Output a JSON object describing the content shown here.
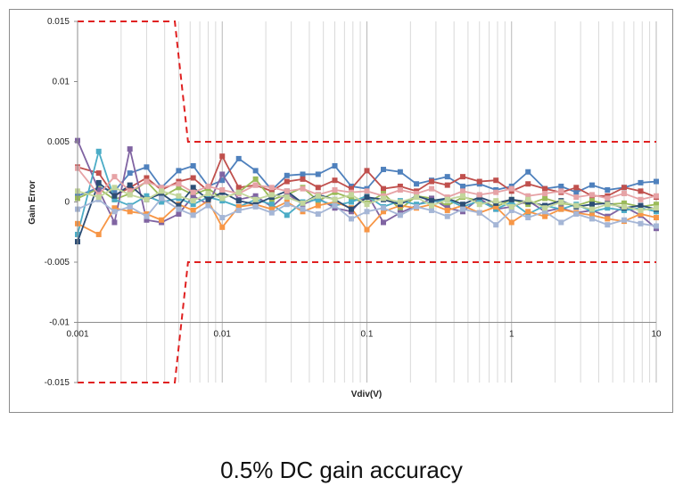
{
  "caption": "0.5% DC gain accuracy",
  "chart_data": {
    "type": "scatter",
    "title": "",
    "xlabel": "Vdiv(V)",
    "ylabel": "Gain Error",
    "xscale": "log",
    "xlim": [
      0.001,
      10
    ],
    "ylim": [
      -0.015,
      0.015
    ],
    "x_ticks": [
      0.001,
      0.01,
      0.1,
      1,
      10
    ],
    "x_tick_labels": [
      "0.001",
      "0.01",
      "0.1",
      "1",
      "10"
    ],
    "y_ticks": [
      0.015,
      0.01,
      0.005,
      0,
      -0.005,
      -0.01,
      -0.015
    ],
    "y_tick_labels": [
      "0.015",
      "0.01",
      "0.005",
      "0",
      "-0.005",
      "-0.01",
      "-0.015"
    ],
    "grid": "x-minor-log",
    "legend": "none",
    "limits": [
      {
        "name": "upper-limit",
        "color": "#e02020",
        "x": [
          0.001,
          0.0047,
          0.0058,
          10
        ],
        "y": [
          0.015,
          0.015,
          0.005,
          0.005
        ]
      },
      {
        "name": "lower-limit",
        "color": "#e02020",
        "x": [
          0.001,
          0.0047,
          0.0058,
          10
        ],
        "y": [
          -0.015,
          -0.015,
          -0.005,
          -0.005
        ]
      }
    ],
    "series": [
      {
        "name": "s1",
        "color": "#4f81bd",
        "x": [
          0.001,
          0.0014,
          0.0018,
          0.0023,
          0.003,
          0.0038,
          0.005,
          0.0063,
          0.008,
          0.01,
          0.013,
          0.017,
          0.022,
          0.028,
          0.036,
          0.046,
          0.06,
          0.078,
          0.1,
          0.13,
          0.17,
          0.22,
          0.28,
          0.36,
          0.46,
          0.6,
          0.78,
          1,
          1.3,
          1.7,
          2.2,
          2.8,
          3.6,
          4.6,
          6,
          7.8,
          10
        ],
        "y": [
          0.0005,
          0.0012,
          0.0009,
          0.0024,
          0.0029,
          0.0012,
          0.0026,
          0.003,
          0.0013,
          0.0018,
          0.0036,
          0.0026,
          0.001,
          0.0022,
          0.0023,
          0.0023,
          0.003,
          0.0013,
          0.0011,
          0.0027,
          0.0025,
          0.0015,
          0.0018,
          0.0021,
          0.0013,
          0.0015,
          0.001,
          0.0013,
          0.0025,
          0.0011,
          0.0013,
          0.0008,
          0.0014,
          0.001,
          0.0012,
          0.0016,
          0.0017
        ]
      },
      {
        "name": "s2",
        "color": "#c0504d",
        "x": [
          0.001,
          0.0014,
          0.0018,
          0.0023,
          0.003,
          0.0038,
          0.005,
          0.0063,
          0.008,
          0.01,
          0.013,
          0.017,
          0.022,
          0.028,
          0.036,
          0.046,
          0.06,
          0.078,
          0.1,
          0.13,
          0.17,
          0.22,
          0.28,
          0.36,
          0.46,
          0.6,
          0.78,
          1,
          1.3,
          1.7,
          2.2,
          2.8,
          3.6,
          4.6,
          6,
          7.8,
          10
        ],
        "y": [
          0.0029,
          0.0024,
          0.0005,
          0.0012,
          0.002,
          0.001,
          0.0017,
          0.002,
          0.0009,
          0.0038,
          0.0012,
          0.0014,
          0.0009,
          0.0017,
          0.0019,
          0.0012,
          0.0018,
          0.0011,
          0.0026,
          0.0011,
          0.0013,
          0.0009,
          0.0017,
          0.0014,
          0.0021,
          0.0017,
          0.0018,
          0.0009,
          0.0015,
          0.0011,
          0.0008,
          0.0012,
          0.0005,
          0.0005,
          0.0012,
          0.0009,
          0.0004
        ]
      },
      {
        "name": "s3",
        "color": "#9bbb59",
        "x": [
          0.001,
          0.0014,
          0.0018,
          0.0023,
          0.003,
          0.0038,
          0.005,
          0.0063,
          0.008,
          0.01,
          0.013,
          0.017,
          0.022,
          0.028,
          0.036,
          0.046,
          0.06,
          0.078,
          0.1,
          0.13,
          0.17,
          0.22,
          0.28,
          0.36,
          0.46,
          0.6,
          0.78,
          1,
          1.3,
          1.7,
          2.2,
          2.8,
          3.6,
          4.6,
          6,
          7.8,
          10
        ],
        "y": [
          0.0003,
          0.0011,
          0.0002,
          0.0007,
          0.0017,
          0.0004,
          0.0012,
          0.0006,
          0.0011,
          0.0003,
          0.0008,
          0.0019,
          0.0002,
          0.0006,
          0.0012,
          0.0001,
          0.0008,
          0.0003,
          -0.0001,
          0.0007,
          -0.0006,
          0.0005,
          0.0003,
          -0.0003,
          0.0004,
          0.0001,
          -0.0004,
          0.0002,
          -0.0002,
          0.0003,
          -0.0001,
          -0.0003,
          0.0001,
          -0.0002,
          -0.0001,
          -0.0004,
          -0.0002
        ]
      },
      {
        "name": "s4",
        "color": "#8064a2",
        "x": [
          0.001,
          0.0014,
          0.0018,
          0.0023,
          0.003,
          0.0038,
          0.005,
          0.0063,
          0.008,
          0.01,
          0.013,
          0.017,
          0.022,
          0.028,
          0.036,
          0.046,
          0.06,
          0.078,
          0.1,
          0.13,
          0.17,
          0.22,
          0.28,
          0.36,
          0.46,
          0.6,
          0.78,
          1,
          1.3,
          1.7,
          2.2,
          2.8,
          3.6,
          4.6,
          6,
          7.8,
          10
        ],
        "y": [
          0.0051,
          0.001,
          -0.0017,
          0.0044,
          -0.0015,
          -0.0017,
          -0.001,
          0.0005,
          -0.0002,
          0.0023,
          0.0002,
          0.0005,
          -0.0004,
          0.0007,
          -0.0002,
          0.0003,
          -0.0005,
          -0.0008,
          0.0007,
          -0.0017,
          -0.0009,
          -0.0003,
          0.0003,
          -0.0005,
          -0.0008,
          0.0003,
          -0.0006,
          -0.0004,
          0.0001,
          -0.0008,
          -0.0005,
          -0.0009,
          -0.0007,
          -0.0012,
          -0.0004,
          -0.0011,
          -0.0022
        ]
      },
      {
        "name": "s5",
        "color": "#4bacc6",
        "x": [
          0.001,
          0.0014,
          0.0018,
          0.0023,
          0.003,
          0.0038,
          0.005,
          0.0063,
          0.008,
          0.01,
          0.013,
          0.017,
          0.022,
          0.028,
          0.036,
          0.046,
          0.06,
          0.078,
          0.1,
          0.13,
          0.17,
          0.22,
          0.28,
          0.36,
          0.46,
          0.6,
          0.78,
          1,
          1.3,
          1.7,
          2.2,
          2.8,
          3.6,
          4.6,
          6,
          7.8,
          10
        ],
        "y": [
          -0.0027,
          0.0042,
          0.0002,
          -0.0003,
          0.0005,
          0.0,
          0.0003,
          -0.0002,
          0.0004,
          0.0001,
          -0.0004,
          0.0002,
          -0.0002,
          -0.0011,
          0.0,
          0.0002,
          -0.0003,
          0.0,
          0.0005,
          -0.0004,
          0.0001,
          -0.0002,
          0.0,
          0.0002,
          -0.0004,
          0.0001,
          -0.0006,
          0.0,
          -0.001,
          -0.0003,
          -0.0006,
          -0.0002,
          -0.0008,
          -0.0005,
          -0.0007,
          -0.0005,
          -0.0008
        ]
      },
      {
        "name": "s6",
        "color": "#f79646",
        "x": [
          0.001,
          0.0014,
          0.0018,
          0.0023,
          0.003,
          0.0038,
          0.005,
          0.0063,
          0.008,
          0.01,
          0.013,
          0.017,
          0.022,
          0.028,
          0.036,
          0.046,
          0.06,
          0.078,
          0.1,
          0.13,
          0.17,
          0.22,
          0.28,
          0.36,
          0.46,
          0.6,
          0.78,
          1,
          1.3,
          1.7,
          2.2,
          2.8,
          3.6,
          4.6,
          6,
          7.8,
          10
        ],
        "y": [
          -0.0018,
          -0.0027,
          -0.0005,
          -0.0008,
          -0.001,
          -0.0015,
          -0.0002,
          -0.0007,
          0.0001,
          -0.0021,
          -0.0004,
          -0.0002,
          -0.0006,
          0.0,
          -0.0008,
          -0.0003,
          0.0,
          -0.0005,
          -0.0023,
          -0.0008,
          -0.0003,
          -0.0005,
          -0.0002,
          -0.0007,
          -0.0003,
          -0.0009,
          -0.0004,
          -0.0017,
          -0.0008,
          -0.0012,
          -0.0006,
          -0.0009,
          -0.0011,
          -0.0014,
          -0.0016,
          -0.001,
          -0.0013
        ]
      },
      {
        "name": "s7",
        "color": "#2c4d75",
        "x": [
          0.001,
          0.0014,
          0.0018,
          0.0023,
          0.003,
          0.0038,
          0.005,
          0.0063,
          0.008,
          0.01,
          0.013,
          0.017,
          0.022,
          0.028,
          0.036,
          0.046,
          0.06,
          0.078,
          0.1,
          0.13,
          0.17,
          0.22,
          0.28,
          0.36,
          0.46,
          0.6,
          0.78,
          1,
          1.3,
          1.7,
          2.2,
          2.8,
          3.6,
          4.6,
          6,
          7.8,
          10
        ],
        "y": [
          -0.0033,
          0.0016,
          0.0005,
          0.0014,
          0.0002,
          0.0007,
          -0.0003,
          0.0012,
          0.0002,
          0.0008,
          0.0001,
          -0.0002,
          0.0004,
          0.0009,
          -0.0001,
          0.0006,
          0.0002,
          -0.0006,
          0.0004,
          0.0002,
          -0.0002,
          0.0005,
          0.0001,
          0.0003,
          -0.0002,
          0.0004,
          -0.0001,
          0.0002,
          0.0,
          -0.0003,
          0.0001,
          -0.0004,
          -0.0002,
          -0.0001,
          -0.0005,
          -0.0003,
          -0.0006
        ]
      },
      {
        "name": "s8",
        "color": "#e6a3a6",
        "x": [
          0.001,
          0.0014,
          0.0018,
          0.0023,
          0.003,
          0.0038,
          0.005,
          0.0063,
          0.008,
          0.01,
          0.013,
          0.017,
          0.022,
          0.028,
          0.036,
          0.046,
          0.06,
          0.078,
          0.1,
          0.13,
          0.17,
          0.22,
          0.28,
          0.36,
          0.46,
          0.6,
          0.78,
          1,
          1.3,
          1.7,
          2.2,
          2.8,
          3.6,
          4.6,
          6,
          7.8,
          10
        ],
        "y": [
          0.0028,
          0.0006,
          0.0021,
          0.0009,
          0.0017,
          0.0012,
          0.0015,
          0.0008,
          0.0013,
          0.001,
          0.0007,
          0.0014,
          0.0012,
          0.0009,
          0.0011,
          0.0006,
          0.001,
          0.0008,
          0.0009,
          0.0005,
          0.001,
          0.0007,
          0.0011,
          0.0004,
          0.0009,
          0.0006,
          0.0008,
          0.0011,
          0.0005,
          0.0007,
          0.0009,
          0.0004,
          0.0006,
          0.0003,
          0.0007,
          0.0002,
          0.0005
        ]
      },
      {
        "name": "s9",
        "color": "#a5b6d6",
        "x": [
          0.001,
          0.0014,
          0.0018,
          0.0023,
          0.003,
          0.0038,
          0.005,
          0.0063,
          0.008,
          0.01,
          0.013,
          0.017,
          0.022,
          0.028,
          0.036,
          0.046,
          0.06,
          0.078,
          0.1,
          0.13,
          0.17,
          0.22,
          0.28,
          0.36,
          0.46,
          0.6,
          0.78,
          1,
          1.3,
          1.7,
          2.2,
          2.8,
          3.6,
          4.6,
          6,
          7.8,
          10
        ],
        "y": [
          -0.0006,
          0.0002,
          -0.0008,
          -0.0004,
          -0.0012,
          0.0003,
          -0.0006,
          -0.0011,
          -0.0003,
          -0.0013,
          -0.0007,
          -0.0004,
          -0.0009,
          -0.0002,
          -0.0006,
          -0.001,
          -0.0003,
          -0.0014,
          -0.0008,
          -0.0005,
          -0.0011,
          -0.0004,
          -0.0007,
          -0.0012,
          -0.0006,
          -0.0009,
          -0.0019,
          -0.0007,
          -0.0013,
          -0.0008,
          -0.0017,
          -0.001,
          -0.0014,
          -0.0019,
          -0.0015,
          -0.0018,
          -0.002
        ]
      },
      {
        "name": "s10",
        "color": "#c3d69b",
        "x": [
          0.001,
          0.0014,
          0.0018,
          0.0023,
          0.003,
          0.0038,
          0.005,
          0.0063,
          0.008,
          0.01,
          0.013,
          0.017,
          0.022,
          0.028,
          0.036,
          0.046,
          0.06,
          0.078,
          0.1,
          0.13,
          0.17,
          0.22,
          0.28,
          0.36,
          0.46,
          0.6,
          0.78,
          1,
          1.3,
          1.7,
          2.2,
          2.8,
          3.6,
          4.6,
          6,
          7.8,
          10
        ],
        "y": [
          0.0009,
          0.0004,
          0.0012,
          0.0006,
          0.0002,
          0.0009,
          0.0005,
          0.0001,
          0.0007,
          0.0003,
          0.0008,
          0.0002,
          0.0006,
          0.0004,
          -0.0001,
          0.0005,
          0.0002,
          0.0006,
          -0.0002,
          0.0003,
          0.0,
          0.0004,
          -0.0003,
          0.0002,
          0.0005,
          -0.0002,
          0.0001,
          -0.0004,
          0.0002,
          -0.0005,
          0.0,
          -0.0003,
          -0.0006,
          -0.0002,
          -0.0004,
          -0.0007,
          -0.0005
        ]
      }
    ]
  }
}
